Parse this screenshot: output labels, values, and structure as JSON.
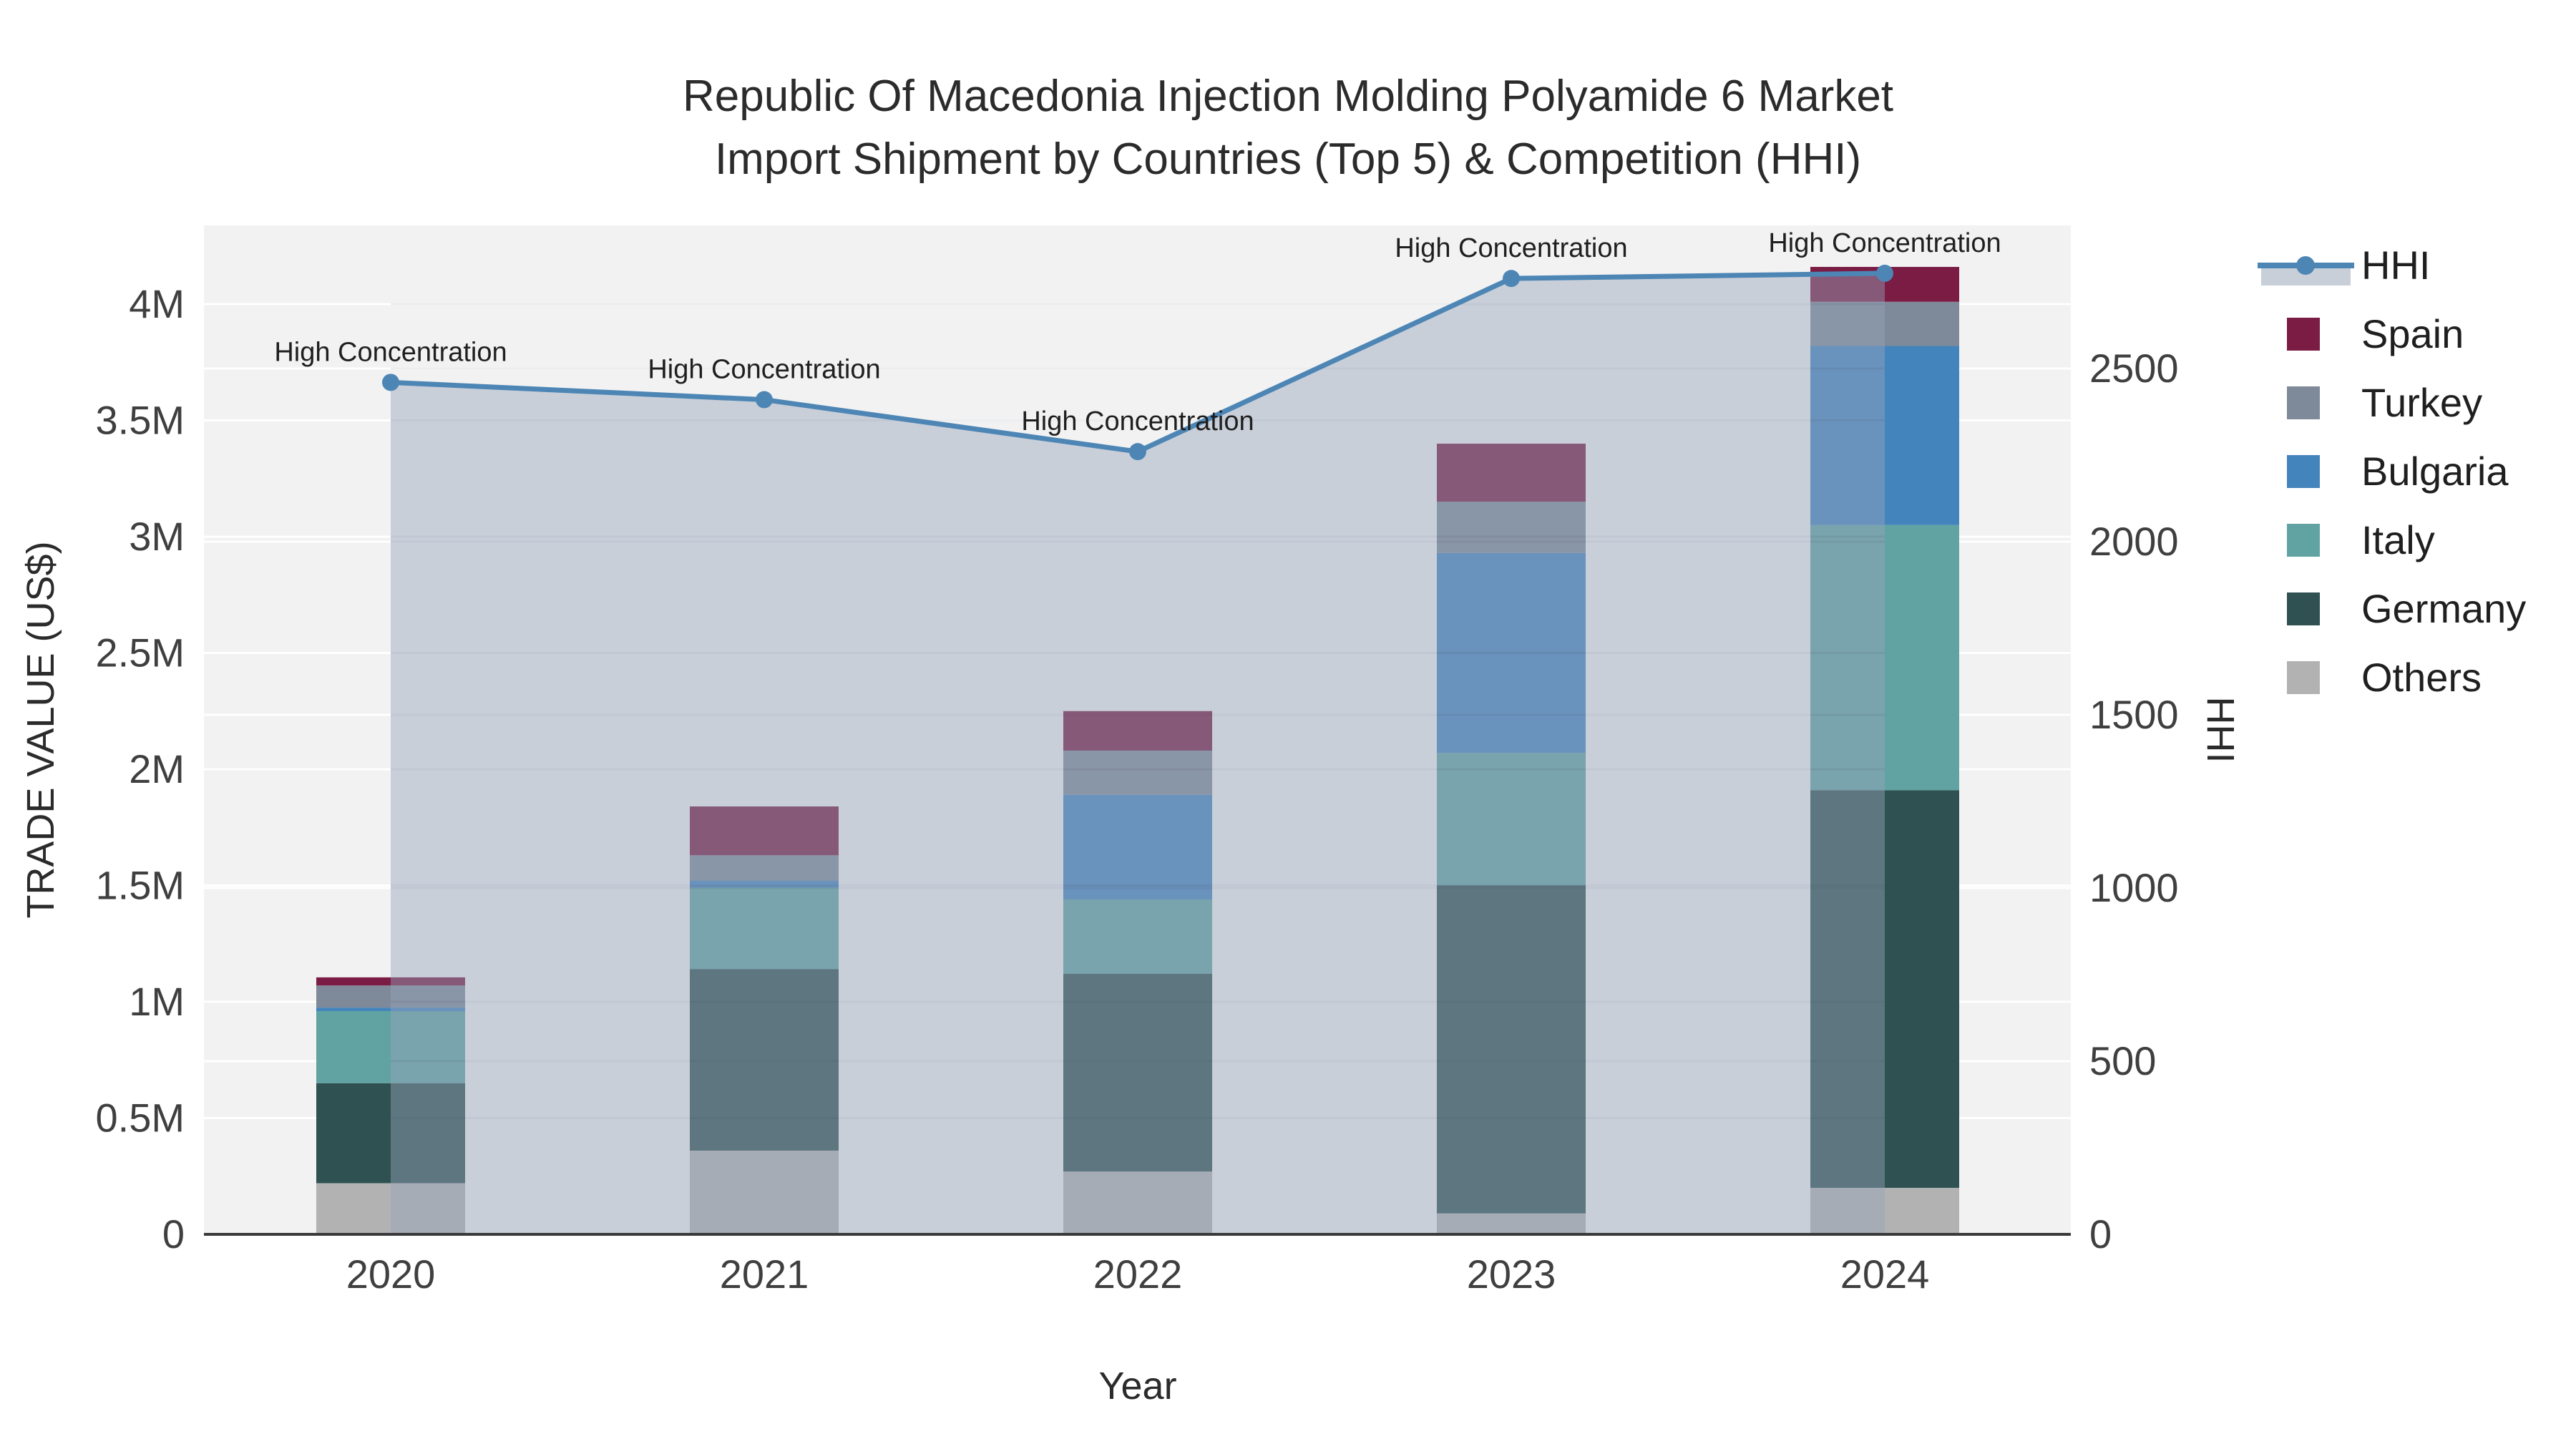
{
  "title": {
    "line1": "Republic Of Macedonia Injection Molding Polyamide 6 Market",
    "line2": "Import Shipment by Countries (Top 5) & Competition (HHI)"
  },
  "axes": {
    "x": {
      "title": "Year",
      "ticks": [
        "2020",
        "2021",
        "2022",
        "2023",
        "2024"
      ]
    },
    "y_left": {
      "title": "TRADE VALUE (US$)",
      "ticks": [
        "0",
        "0.5M",
        "1M",
        "1.5M",
        "2M",
        "2.5M",
        "3M",
        "3.5M",
        "4M"
      ],
      "tick_values_musd": [
        0,
        0.5,
        1,
        1.5,
        2,
        2.5,
        3,
        3.5,
        4
      ]
    },
    "y_right": {
      "title": "HHI",
      "ticks": [
        "0",
        "500",
        "1000",
        "1500",
        "2000",
        "2500"
      ],
      "tick_values": [
        0,
        500,
        1000,
        1500,
        2000,
        2500
      ]
    }
  },
  "legend": {
    "items": [
      {
        "label": "HHI",
        "type": "line",
        "color": "#4d86b5"
      },
      {
        "label": "Spain",
        "type": "swatch",
        "color": "#7a1c44"
      },
      {
        "label": "Turkey",
        "type": "swatch",
        "color": "#7e8a99"
      },
      {
        "label": "Bulgaria",
        "type": "swatch",
        "color": "#4484bd"
      },
      {
        "label": "Italy",
        "type": "swatch",
        "color": "#61a3a3"
      },
      {
        "label": "Germany",
        "type": "swatch",
        "color": "#2f5151"
      },
      {
        "label": "Others",
        "type": "swatch",
        "color": "#b2b2b2"
      }
    ]
  },
  "colors": {
    "plot_background": "#f2f2f2",
    "gridline": "#ffffff",
    "axis_line": "#3a3a3a",
    "hhi_line": "#4d86b5",
    "hhi_area_fill": "rgba(151,164,186,0.45)",
    "legend_band": "#c9cfd9"
  },
  "chart_data": {
    "type": "combo-stacked-bar-line",
    "title": "Republic Of Macedonia Injection Molding Polyamide 6 Market Import Shipment by Countries (Top 5) & Competition (HHI)",
    "categories": [
      "2020",
      "2021",
      "2022",
      "2023",
      "2024"
    ],
    "xlabel": "Year",
    "ylabel_left": "TRADE VALUE (US$)",
    "ylabel_right": "HHI",
    "ylim_left_musd": [
      0,
      4.34
    ],
    "ylim_right": [
      0,
      2913
    ],
    "grid": "on",
    "legend_position": "right",
    "stack_order_bottom_to_top": [
      "Others",
      "Germany",
      "Italy",
      "Bulgaria",
      "Turkey",
      "Spain"
    ],
    "series": [
      {
        "name": "Others",
        "color": "#b2b2b2",
        "values_musd": [
          0.22,
          0.36,
          0.27,
          0.09,
          0.2
        ]
      },
      {
        "name": "Germany",
        "color": "#2f5151",
        "values_musd": [
          0.43,
          0.78,
          0.85,
          1.41,
          1.71
        ]
      },
      {
        "name": "Italy",
        "color": "#61a3a3",
        "values_musd": [
          0.31,
          0.35,
          0.32,
          0.57,
          1.14
        ]
      },
      {
        "name": "Bulgaria",
        "color": "#4484bd",
        "values_musd": [
          0.015,
          0.03,
          0.45,
          0.86,
          0.77
        ]
      },
      {
        "name": "Turkey",
        "color": "#7e8a99",
        "values_musd": [
          0.095,
          0.11,
          0.19,
          0.22,
          0.19
        ]
      },
      {
        "name": "Spain",
        "color": "#7a1c44",
        "values_musd": [
          0.035,
          0.21,
          0.17,
          0.25,
          0.15
        ]
      }
    ],
    "totals_musd": [
      1.105,
      1.84,
      2.25,
      3.4,
      4.16
    ],
    "hhi_line": {
      "name": "HHI",
      "axis": "right",
      "color": "#4d86b5",
      "fill_color": "rgba(151,164,186,0.45)",
      "values": [
        2460,
        2410,
        2260,
        2760,
        2775
      ]
    },
    "annotations": [
      {
        "text": "High Concentration",
        "x": "2020"
      },
      {
        "text": "High Concentration",
        "x": "2021"
      },
      {
        "text": "High Concentration",
        "x": "2022"
      },
      {
        "text": "High Concentration",
        "x": "2023"
      },
      {
        "text": "High Concentration",
        "x": "2024"
      }
    ]
  }
}
